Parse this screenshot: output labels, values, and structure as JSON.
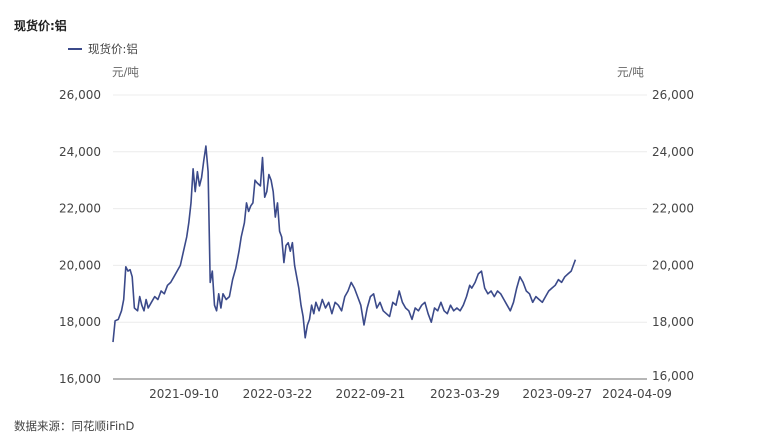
{
  "title": "现货价:铝",
  "legend": {
    "label": "现货价:铝",
    "color": "#3b4a8a"
  },
  "unit_left": "元/吨",
  "unit_right": "元/吨",
  "source": "数据来源：同花顺iFinD",
  "chart_data": {
    "type": "line",
    "title": "现货价:铝",
    "xlabel": "",
    "ylabel": "元/吨",
    "y2label": "元/吨",
    "ylim": [
      16000,
      26000
    ],
    "yticks": [
      16000,
      18000,
      20000,
      22000,
      24000,
      26000
    ],
    "ytick_labels": [
      "16,000",
      "18,000",
      "20,000",
      "22,000",
      "24,000",
      "26,000"
    ],
    "xtick_labels": [
      "2021-09-10",
      "2022-03-22",
      "2022-09-21",
      "2023-03-29",
      "2023-09-27",
      "2024-04-09"
    ],
    "xtick_positions": [
      0.133,
      0.308,
      0.482,
      0.659,
      0.832,
      1.0
    ],
    "grid": true,
    "legend_position": "top-left",
    "series": [
      {
        "name": "现货价:铝",
        "color": "#3b4a8a",
        "points": [
          [
            0.0,
            17300
          ],
          [
            0.004,
            18050
          ],
          [
            0.01,
            18100
          ],
          [
            0.016,
            18400
          ],
          [
            0.02,
            18800
          ],
          [
            0.024,
            19950
          ],
          [
            0.028,
            19800
          ],
          [
            0.032,
            19850
          ],
          [
            0.036,
            19600
          ],
          [
            0.04,
            18500
          ],
          [
            0.046,
            18400
          ],
          [
            0.05,
            18900
          ],
          [
            0.054,
            18600
          ],
          [
            0.058,
            18400
          ],
          [
            0.062,
            18800
          ],
          [
            0.066,
            18500
          ],
          [
            0.072,
            18700
          ],
          [
            0.078,
            18900
          ],
          [
            0.084,
            18800
          ],
          [
            0.09,
            19100
          ],
          [
            0.096,
            19000
          ],
          [
            0.102,
            19300
          ],
          [
            0.108,
            19400
          ],
          [
            0.114,
            19600
          ],
          [
            0.12,
            19800
          ],
          [
            0.126,
            20000
          ],
          [
            0.132,
            20500
          ],
          [
            0.138,
            21000
          ],
          [
            0.142,
            21500
          ],
          [
            0.146,
            22200
          ],
          [
            0.15,
            23400
          ],
          [
            0.154,
            22600
          ],
          [
            0.158,
            23300
          ],
          [
            0.162,
            22800
          ],
          [
            0.166,
            23100
          ],
          [
            0.17,
            23700
          ],
          [
            0.174,
            24200
          ],
          [
            0.178,
            23300
          ],
          [
            0.182,
            19400
          ],
          [
            0.186,
            19800
          ],
          [
            0.19,
            18600
          ],
          [
            0.194,
            18400
          ],
          [
            0.198,
            19000
          ],
          [
            0.202,
            18500
          ],
          [
            0.206,
            19000
          ],
          [
            0.212,
            18800
          ],
          [
            0.218,
            18900
          ],
          [
            0.224,
            19500
          ],
          [
            0.23,
            19900
          ],
          [
            0.236,
            20500
          ],
          [
            0.24,
            21000
          ],
          [
            0.246,
            21500
          ],
          [
            0.25,
            22200
          ],
          [
            0.254,
            21900
          ],
          [
            0.258,
            22100
          ],
          [
            0.262,
            22200
          ],
          [
            0.266,
            23000
          ],
          [
            0.27,
            22900
          ],
          [
            0.276,
            22800
          ],
          [
            0.28,
            23800
          ],
          [
            0.284,
            22400
          ],
          [
            0.288,
            22600
          ],
          [
            0.292,
            23200
          ],
          [
            0.296,
            23000
          ],
          [
            0.3,
            22600
          ],
          [
            0.304,
            21700
          ],
          [
            0.308,
            22200
          ],
          [
            0.312,
            21200
          ],
          [
            0.316,
            21000
          ],
          [
            0.32,
            20100
          ],
          [
            0.324,
            20700
          ],
          [
            0.328,
            20800
          ],
          [
            0.332,
            20500
          ],
          [
            0.336,
            20800
          ],
          [
            0.34,
            20000
          ],
          [
            0.344,
            19600
          ],
          [
            0.348,
            19200
          ],
          [
            0.352,
            18600
          ],
          [
            0.356,
            18200
          ],
          [
            0.36,
            17450
          ],
          [
            0.364,
            17900
          ],
          [
            0.368,
            18100
          ],
          [
            0.372,
            18600
          ],
          [
            0.376,
            18300
          ],
          [
            0.38,
            18700
          ],
          [
            0.386,
            18400
          ],
          [
            0.392,
            18800
          ],
          [
            0.398,
            18500
          ],
          [
            0.404,
            18700
          ],
          [
            0.41,
            18300
          ],
          [
            0.416,
            18700
          ],
          [
            0.422,
            18600
          ],
          [
            0.428,
            18400
          ],
          [
            0.434,
            18900
          ],
          [
            0.44,
            19100
          ],
          [
            0.446,
            19400
          ],
          [
            0.452,
            19200
          ],
          [
            0.458,
            18900
          ],
          [
            0.464,
            18600
          ],
          [
            0.47,
            17900
          ],
          [
            0.476,
            18500
          ],
          [
            0.482,
            18900
          ],
          [
            0.488,
            19000
          ],
          [
            0.494,
            18500
          ],
          [
            0.5,
            18700
          ],
          [
            0.506,
            18400
          ],
          [
            0.512,
            18300
          ],
          [
            0.518,
            18200
          ],
          [
            0.524,
            18700
          ],
          [
            0.53,
            18600
          ],
          [
            0.536,
            19100
          ],
          [
            0.542,
            18700
          ],
          [
            0.548,
            18500
          ],
          [
            0.554,
            18400
          ],
          [
            0.56,
            18100
          ],
          [
            0.566,
            18500
          ],
          [
            0.572,
            18400
          ],
          [
            0.578,
            18600
          ],
          [
            0.584,
            18700
          ],
          [
            0.59,
            18300
          ],
          [
            0.596,
            18000
          ],
          [
            0.602,
            18500
          ],
          [
            0.608,
            18400
          ],
          [
            0.614,
            18700
          ],
          [
            0.62,
            18400
          ],
          [
            0.626,
            18300
          ],
          [
            0.632,
            18600
          ],
          [
            0.638,
            18400
          ],
          [
            0.644,
            18500
          ],
          [
            0.65,
            18400
          ],
          [
            0.656,
            18600
          ],
          [
            0.662,
            18900
          ],
          [
            0.668,
            19300
          ],
          [
            0.672,
            19200
          ],
          [
            0.678,
            19400
          ],
          [
            0.684,
            19700
          ],
          [
            0.69,
            19800
          ],
          [
            0.696,
            19200
          ],
          [
            0.702,
            19000
          ],
          [
            0.708,
            19100
          ],
          [
            0.714,
            18900
          ],
          [
            0.72,
            19100
          ],
          [
            0.726,
            19000
          ],
          [
            0.732,
            18800
          ],
          [
            0.738,
            18600
          ],
          [
            0.744,
            18400
          ],
          [
            0.75,
            18700
          ],
          [
            0.756,
            19200
          ],
          [
            0.762,
            19600
          ],
          [
            0.768,
            19400
          ],
          [
            0.774,
            19100
          ],
          [
            0.78,
            19000
          ],
          [
            0.786,
            18700
          ],
          [
            0.792,
            18900
          ],
          [
            0.798,
            18800
          ],
          [
            0.804,
            18700
          ],
          [
            0.81,
            18900
          ],
          [
            0.816,
            19100
          ],
          [
            0.822,
            19200
          ],
          [
            0.828,
            19300
          ],
          [
            0.834,
            19500
          ],
          [
            0.84,
            19400
          ],
          [
            0.846,
            19600
          ],
          [
            0.852,
            19700
          ],
          [
            0.858,
            19800
          ],
          [
            0.862,
            20000
          ],
          [
            0.866,
            20200
          ]
        ]
      }
    ]
  }
}
